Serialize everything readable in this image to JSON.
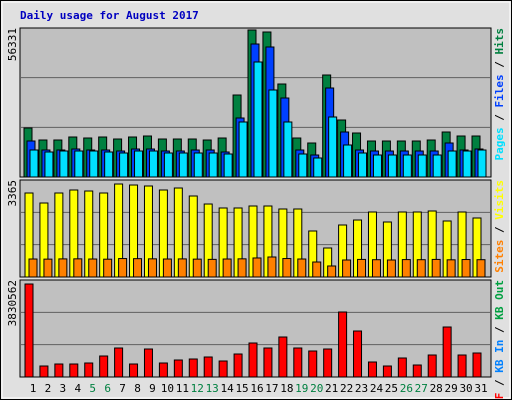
{
  "chart_data": [
    {
      "type": "bar",
      "title": "Daily usage for August 2017",
      "legend_separator": " / ",
      "ylim": [
        0,
        56331
      ],
      "yticks": [
        56331
      ],
      "grid_divisions": 3,
      "series": [
        {
          "name": "Hits",
          "color": "#008040",
          "values": [
            18525,
            13988,
            13988,
            15122,
            14744,
            15122,
            14366,
            15122,
            15500,
            14366,
            14366,
            14366,
            13988,
            14744,
            31001,
            55575,
            54819,
            35160,
            14744,
            12854,
            38562,
            21549,
            16635,
            13610,
            13610,
            13610,
            13610,
            13988,
            17013,
            15500,
            15500
          ]
        },
        {
          "name": "Files",
          "color": "#0040ff",
          "values": [
            13610,
            10208,
            10208,
            10586,
            10208,
            10208,
            9830,
            10586,
            10586,
            9830,
            9830,
            10208,
            10208,
            9452,
            22305,
            50282,
            49148,
            29867,
            10208,
            8317,
            33647,
            17013,
            10208,
            9830,
            9830,
            9830,
            9830,
            9830,
            12854,
            10208,
            10586
          ]
        },
        {
          "name": "Pages",
          "color": "#00e0ff",
          "values": [
            10208,
            9452,
            9830,
            9830,
            9830,
            9452,
            9073,
            9830,
            9830,
            9073,
            9073,
            9073,
            9073,
            8695,
            20793,
            43477,
            32891,
            20793,
            8695,
            7183,
            22684,
            12098,
            9073,
            8317,
            8317,
            8317,
            8317,
            8317,
            9830,
            9830,
            10208
          ]
        }
      ]
    },
    {
      "type": "bar",
      "ylim": [
        0,
        3365
      ],
      "yticks": [
        3365
      ],
      "grid_divisions": 3,
      "series": [
        {
          "name": "Visits",
          "color": "#ffff00",
          "values": [
            2914,
            2567,
            2914,
            3018,
            2983,
            2914,
            3226,
            3191,
            3157,
            3018,
            3087,
            2810,
            2532,
            2394,
            2394,
            2463,
            2463,
            2359,
            2359,
            1596,
            1006,
            1804,
            1977,
            2255,
            1908,
            2255,
            2255,
            2290,
            1943,
            2255,
            2047
          ]
        },
        {
          "name": "Sites",
          "color": "#ff8000",
          "values": [
            624,
            620,
            628,
            630,
            624,
            618,
            640,
            636,
            630,
            624,
            628,
            620,
            612,
            624,
            630,
            660,
            694,
            640,
            624,
            520,
            382,
            590,
            610,
            600,
            590,
            604,
            600,
            610,
            596,
            606,
            600
          ]
        }
      ]
    },
    {
      "type": "bar",
      "ylim": [
        0,
        3830562
      ],
      "yticks": [
        3830562
      ],
      "grid_divisions": 3,
      "series": [
        {
          "name": "KB F",
          "color": "#ff0000",
          "values": [
            3672570,
            434390,
            513370,
            513370,
            552860,
            829290,
            1145210,
            513370,
            1105720,
            552860,
            671330,
            710820,
            789800,
            631840,
            908270,
            1342660,
            1145210,
            1579600,
            1145210,
            1026740,
            1105720,
            2566850,
            1816540,
            592350,
            434390,
            750310,
            473880,
            868780,
            1974500,
            868780,
            947760
          ]
        }
      ],
      "extra_legend": [
        {
          "name": "KB In",
          "color": "#0080ff"
        },
        {
          "name": "KB Out",
          "color": "#00a040"
        }
      ],
      "categories": [
        "1",
        "2",
        "3",
        "4",
        "5",
        "6",
        "7",
        "8",
        "9",
        "10",
        "11",
        "12",
        "13",
        "14",
        "15",
        "16",
        "17",
        "18",
        "19",
        "20",
        "21",
        "22",
        "23",
        "24",
        "25",
        "26",
        "27",
        "28",
        "29",
        "30",
        "31"
      ],
      "category_colors": [
        "#000",
        "#000",
        "#000",
        "#000",
        "#008040",
        "#008040",
        "#000",
        "#000",
        "#000",
        "#000",
        "#000",
        "#008040",
        "#008040",
        "#000",
        "#000",
        "#000",
        "#000",
        "#000",
        "#008040",
        "#008040",
        "#000",
        "#000",
        "#000",
        "#000",
        "#000",
        "#008040",
        "#008040",
        "#000",
        "#000",
        "#000",
        "#000"
      ]
    }
  ]
}
